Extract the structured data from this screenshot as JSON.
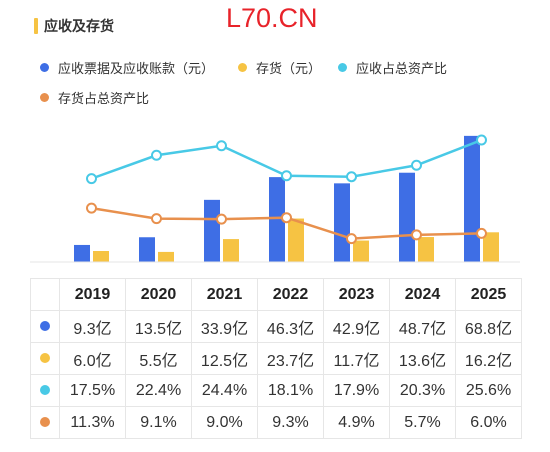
{
  "header": {
    "title": "应收及存货",
    "watermark": "L70.CN"
  },
  "colors": {
    "accent": "#f6c343",
    "receivables": "#3e6ee5",
    "inventory": "#f6c343",
    "receivable_ratio": "#48c9e6",
    "inventory_ratio": "#e8904d",
    "watermark": "#e8232a"
  },
  "legend": [
    {
      "label": "应收票据及应收账款（元）",
      "color": "#3e6ee5"
    },
    {
      "label": "存货（元）",
      "color": "#f6c343"
    },
    {
      "label": "应收占总资产比",
      "color": "#48c9e6"
    },
    {
      "label": "存货占总资产比",
      "color": "#e8904d"
    }
  ],
  "chart_data": {
    "type": "bar",
    "categories": [
      "2019",
      "2020",
      "2021",
      "2022",
      "2023",
      "2024",
      "2025"
    ],
    "series": [
      {
        "name": "应收票据及应收账款（元）",
        "type": "bar",
        "values": [
          9.3,
          13.5,
          33.9,
          46.3,
          42.9,
          48.7,
          68.8
        ],
        "color": "#3e6ee5"
      },
      {
        "name": "存货（元）",
        "type": "bar",
        "values": [
          6.0,
          5.5,
          12.5,
          23.7,
          11.7,
          13.6,
          16.2
        ],
        "color": "#f6c343"
      },
      {
        "name": "应收占总资产比",
        "type": "line",
        "values": [
          17.5,
          22.4,
          24.4,
          18.1,
          17.9,
          20.3,
          25.6
        ],
        "color": "#48c9e6"
      },
      {
        "name": "存货占总资产比",
        "type": "line",
        "values": [
          11.3,
          9.1,
          9.0,
          9.3,
          4.9,
          5.7,
          6.0
        ],
        "color": "#e8904d"
      }
    ],
    "ylim_bar": [
      0,
      72
    ],
    "ylim_line": [
      0,
      34
    ],
    "grid": false,
    "legend_position": "top"
  },
  "table": {
    "years": [
      "2019",
      "2020",
      "2021",
      "2022",
      "2023",
      "2024",
      "2025"
    ],
    "rows": [
      {
        "color": "#3e6ee5",
        "cells": [
          "9.3亿",
          "13.5亿",
          "33.9亿",
          "46.3亿",
          "42.9亿",
          "48.7亿",
          "68.8亿"
        ]
      },
      {
        "color": "#f6c343",
        "cells": [
          "6.0亿",
          "5.5亿",
          "12.5亿",
          "23.7亿",
          "11.7亿",
          "13.6亿",
          "16.2亿"
        ]
      },
      {
        "color": "#48c9e6",
        "cells": [
          "17.5%",
          "22.4%",
          "24.4%",
          "18.1%",
          "17.9%",
          "20.3%",
          "25.6%"
        ]
      },
      {
        "color": "#e8904d",
        "cells": [
          "11.3%",
          "9.1%",
          "9.0%",
          "9.3%",
          "4.9%",
          "5.7%",
          "6.0%"
        ]
      }
    ]
  }
}
